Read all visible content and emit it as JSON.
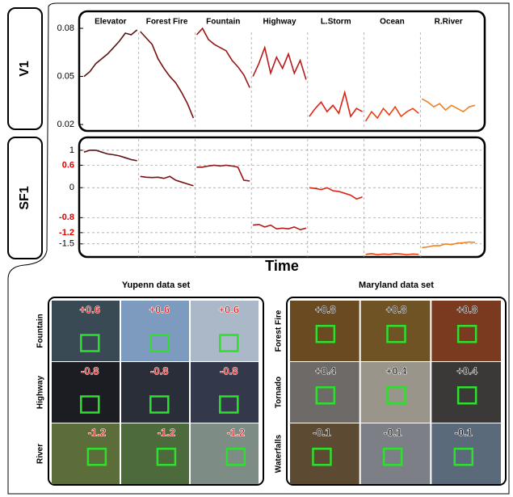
{
  "chart_data": [
    {
      "type": "line",
      "ylabel": "V1",
      "ylim": [
        0.017,
        0.0886
      ],
      "yticks": [
        0.02,
        0.05,
        0.08
      ],
      "series": [
        {
          "name": "Elevator",
          "color": "#5a1212",
          "values": [
            0.05,
            0.053,
            0.058,
            0.061,
            0.064,
            0.068,
            0.072,
            0.077,
            0.076,
            0.079
          ]
        },
        {
          "name": "Forest Fire",
          "color": "#781212",
          "values": [
            0.078,
            0.074,
            0.07,
            0.061,
            0.055,
            0.05,
            0.046,
            0.04,
            0.033,
            0.024
          ]
        },
        {
          "name": "Fountain",
          "color": "#981616",
          "values": [
            0.076,
            0.08,
            0.073,
            0.07,
            0.068,
            0.066,
            0.06,
            0.056,
            0.051,
            0.043
          ]
        },
        {
          "name": "Highway",
          "color": "#b81a1a",
          "values": [
            0.05,
            0.058,
            0.068,
            0.052,
            0.062,
            0.055,
            0.064,
            0.052,
            0.06,
            0.048
          ]
        },
        {
          "name": "L.Storm",
          "color": "#e02010",
          "values": [
            0.025,
            0.03,
            0.034,
            0.028,
            0.032,
            0.027,
            0.04,
            0.025,
            0.03,
            0.028
          ]
        },
        {
          "name": "Ocean",
          "color": "#f04010",
          "values": [
            0.022,
            0.028,
            0.024,
            0.03,
            0.026,
            0.031,
            0.025,
            0.028,
            0.03,
            0.027
          ]
        },
        {
          "name": "R.River",
          "color": "#f08020",
          "values": [
            0.036,
            0.034,
            0.031,
            0.033,
            0.029,
            0.032,
            0.03,
            0.028,
            0.031,
            0.032
          ]
        }
      ]
    },
    {
      "type": "line",
      "ylabel": "SF1",
      "xlabel": "Time",
      "ylim": [
        -1.85,
        1.3
      ],
      "yticks": [
        1,
        0.6,
        0,
        -0.8,
        -1.2,
        -1.5
      ],
      "ytick_colors": [
        "#000",
        "#e00000",
        "#000",
        "#e00000",
        "#e00000",
        "#000"
      ],
      "grid": true,
      "series": [
        {
          "color": "#5a1212",
          "values": [
            0.95,
            1.0,
            1.0,
            0.95,
            0.9,
            0.88,
            0.85,
            0.8,
            0.75,
            0.72
          ]
        },
        {
          "color": "#781212",
          "values": [
            0.3,
            0.28,
            0.27,
            0.28,
            0.25,
            0.3,
            0.2,
            0.15,
            0.1,
            0.05
          ]
        },
        {
          "color": "#981616",
          "values": [
            0.55,
            0.55,
            0.58,
            0.6,
            0.58,
            0.6,
            0.58,
            0.55,
            0.2,
            0.18
          ]
        },
        {
          "color": "#b81a1a",
          "values": [
            -1.0,
            -0.98,
            -1.05,
            -1.0,
            -1.1,
            -1.08,
            -1.1,
            -1.05,
            -1.12,
            -1.08
          ]
        },
        {
          "color": "#e02010",
          "values": [
            0.0,
            -0.02,
            -0.05,
            0.0,
            -0.08,
            -0.1,
            -0.15,
            -0.2,
            -0.3,
            -0.25
          ]
        },
        {
          "color": "#f04010",
          "values": [
            -1.78,
            -1.76,
            -1.79,
            -1.77,
            -1.78,
            -1.76,
            -1.77,
            -1.79,
            -1.77,
            -1.78
          ]
        },
        {
          "color": "#f08020",
          "values": [
            -1.6,
            -1.58,
            -1.55,
            -1.55,
            -1.5,
            -1.52,
            -1.48,
            -1.47,
            -1.45,
            -1.46
          ]
        }
      ]
    }
  ],
  "grids": [
    {
      "title": "Yupenn data set",
      "score_color": "#e00000",
      "rows": [
        {
          "label": "Fountain",
          "score": "+0.6"
        },
        {
          "label": "Highway",
          "score": "-0.8"
        },
        {
          "label": "River",
          "score": "-1.2"
        }
      ]
    },
    {
      "title": "Maryland data set",
      "score_color": "#000000",
      "rows": [
        {
          "label": "Forest Fire",
          "score": "+0.8"
        },
        {
          "label": "Tornado",
          "score": "+0.4"
        },
        {
          "label": "Waterfalls",
          "score": "-0.1"
        }
      ]
    }
  ]
}
